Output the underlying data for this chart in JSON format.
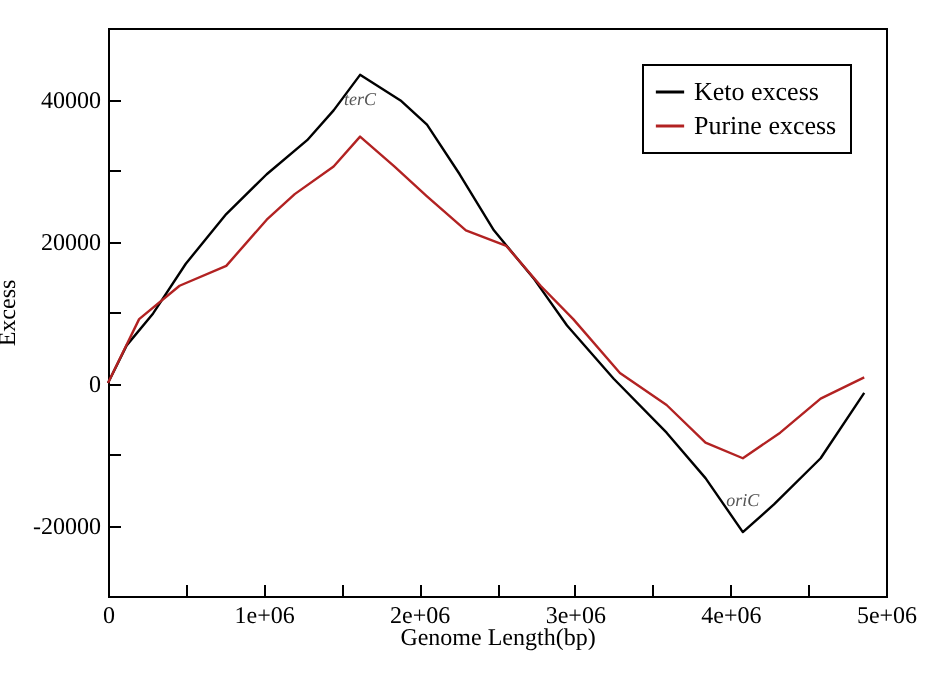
{
  "chart_data": {
    "type": "line",
    "xlabel": "Genome Length(bp)",
    "ylabel": "Excess",
    "xlim": [
      0,
      5000000
    ],
    "ylim": [
      -30000,
      50000
    ],
    "xticks": [
      {
        "value": 0,
        "label": "0"
      },
      {
        "value": 500000,
        "label": null
      },
      {
        "value": 1000000,
        "label": "1e+06"
      },
      {
        "value": 1500000,
        "label": null
      },
      {
        "value": 2000000,
        "label": "2e+06"
      },
      {
        "value": 2500000,
        "label": null
      },
      {
        "value": 3000000,
        "label": "3e+06"
      },
      {
        "value": 3500000,
        "label": null
      },
      {
        "value": 4000000,
        "label": "4e+06"
      },
      {
        "value": 4500000,
        "label": null
      },
      {
        "value": 5000000,
        "label": "5e+06"
      }
    ],
    "yticks": [
      {
        "value": -20000,
        "label": "-20000"
      },
      {
        "value": -10000,
        "label": null
      },
      {
        "value": 0,
        "label": "0"
      },
      {
        "value": 10000,
        "label": null
      },
      {
        "value": 20000,
        "label": "20000"
      },
      {
        "value": 30000,
        "label": null
      },
      {
        "value": 40000,
        "label": "40000"
      }
    ],
    "grid": false,
    "legend": "top right",
    "line_style": "solid",
    "marker": "none",
    "annotations": [
      {
        "text": "terC",
        "x": 1620000,
        "y": 43400
      },
      {
        "text": "oriC",
        "x": 4080000,
        "y": -21000
      }
    ],
    "series": [
      {
        "name": "Keto excess",
        "color": "#000000",
        "x": [
          0,
          120000,
          290000,
          500000,
          760000,
          1020000,
          1280000,
          1450000,
          1620000,
          1880000,
          2050000,
          2260000,
          2480000,
          2740000,
          2950000,
          3250000,
          3590000,
          3840000,
          4080000,
          4280000,
          4580000,
          4860000
        ],
        "values": [
          0,
          5300,
          9800,
          16800,
          23800,
          29400,
          34200,
          38400,
          43400,
          39800,
          36400,
          29400,
          21500,
          14600,
          8100,
          600,
          -7000,
          -13400,
          -21000,
          -17100,
          -10600,
          -1400
        ]
      },
      {
        "name": "Purine excess",
        "color": "#b22222",
        "x": [
          0,
          200000,
          460000,
          760000,
          1020000,
          1200000,
          1450000,
          1620000,
          1840000,
          2050000,
          2300000,
          2560000,
          2780000,
          2990000,
          3290000,
          3590000,
          3840000,
          4080000,
          4320000,
          4580000,
          4860000
        ],
        "values": [
          0,
          9000,
          13700,
          16500,
          23000,
          26600,
          30500,
          34700,
          30500,
          26300,
          21500,
          19300,
          13700,
          9000,
          1400,
          -3100,
          -8400,
          -10600,
          -7000,
          -2200,
          800
        ]
      }
    ]
  }
}
